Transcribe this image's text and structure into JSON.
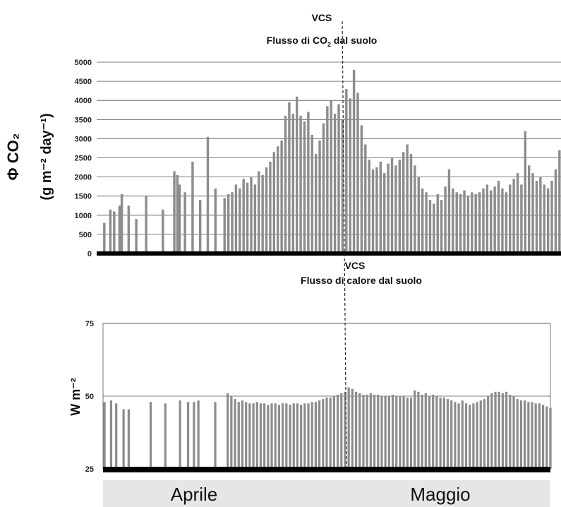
{
  "vcs_line": {
    "x_day": 32.2
  },
  "chart_data": [
    {
      "type": "bar",
      "id": "co2",
      "title_line1": "VCS",
      "title_line2_pre": "Flusso di CO",
      "title_line2_sub": "2",
      "title_line2_post": " dal suolo",
      "ylabel_line1": "Φ CO₂",
      "ylabel_line2": "(g m⁻² day⁻¹)",
      "ylim": [
        0,
        5000
      ],
      "yticks": [
        "0",
        "500",
        "1000",
        "1500",
        "2000",
        "2500",
        "3000",
        "3500",
        "4000",
        "4500",
        "5000"
      ],
      "grid": true,
      "color": "#8c8c8c",
      "x_unit": "days since 1 April",
      "x_range": [
        0,
        61
      ],
      "series": [
        {
          "x": [
            1.0,
            1.8,
            2.3,
            3.0,
            3.3,
            4.2,
            5.2,
            6.5,
            8.7,
            10.2,
            10.6,
            10.9,
            11.6,
            12.6,
            13.6,
            14.6,
            15.6,
            16.8,
            17.3,
            17.8,
            18.3,
            18.8,
            19.3,
            19.8,
            20.3,
            20.8,
            21.3,
            21.8,
            22.3,
            22.8,
            23.3,
            23.8,
            24.3,
            24.8,
            25.3,
            25.8,
            26.3,
            26.8,
            27.3,
            27.8,
            28.3,
            28.8,
            29.3,
            29.8,
            30.3,
            30.8,
            31.3,
            31.8,
            32.3,
            32.8,
            33.3,
            33.8,
            34.3,
            34.8,
            35.3,
            35.8,
            36.3,
            36.8,
            37.3,
            37.8,
            38.3,
            38.8,
            39.3,
            39.8,
            40.3,
            40.8,
            41.3,
            41.8,
            42.3,
            42.8,
            43.3,
            43.8,
            44.3,
            44.8,
            45.3,
            45.8,
            46.3,
            46.8,
            47.3,
            47.8,
            48.3,
            48.8,
            49.3,
            49.8,
            50.3,
            50.8,
            51.3,
            51.8,
            52.3,
            52.8,
            53.3,
            53.8,
            54.3,
            54.8,
            55.3,
            55.8,
            56.3,
            56.8,
            57.3,
            57.8,
            58.3,
            58.8,
            59.3,
            59.8,
            60.3,
            60.8
          ],
          "values": [
            800,
            1150,
            1100,
            1250,
            1550,
            1250,
            900,
            1500,
            1150,
            2150,
            2050,
            1800,
            1600,
            2400,
            1400,
            3050,
            1700,
            1450,
            1550,
            1600,
            1800,
            1700,
            1950,
            1850,
            2000,
            1800,
            2150,
            2050,
            2250,
            2400,
            2650,
            2800,
            2950,
            3600,
            3950,
            3650,
            4100,
            3600,
            3450,
            3700,
            3100,
            2600,
            2950,
            3400,
            3850,
            4000,
            3650,
            3900,
            3500,
            4300,
            4050,
            4800,
            4200,
            3350,
            2850,
            2450,
            2200,
            2250,
            2400,
            2100,
            2350,
            2500,
            2300,
            2450,
            2650,
            2850,
            2600,
            2300,
            2000,
            1700,
            1600,
            1400,
            1300,
            1550,
            1400,
            1750,
            2200,
            1700,
            1600,
            1550,
            1650,
            1500,
            1600,
            1550,
            1600,
            1700,
            1800,
            1650,
            1750,
            1900,
            1700,
            1600,
            1800,
            1950,
            2100,
            1800,
            3200,
            2300,
            2100,
            1900,
            2000,
            1800,
            1700,
            1900,
            2200,
            2700
          ]
        }
      ]
    },
    {
      "type": "bar",
      "id": "heat",
      "title_line1": "VCS",
      "title_line2": "Flusso di calore dal suolo",
      "ylabel": "W m⁻²",
      "ylim": [
        25,
        75
      ],
      "yticks": [
        "25",
        "50",
        "75"
      ],
      "grid": true,
      "color": "#8c8c8c",
      "x_unit": "days since 1 April",
      "x_range": [
        0,
        61
      ],
      "series": [
        {
          "x": [
            0.2,
            1.1,
            1.8,
            2.8,
            3.5,
            6.5,
            8.5,
            10.5,
            11.6,
            12.4,
            13.0,
            15.3,
            17.0,
            17.5,
            18.0,
            18.5,
            19.0,
            19.5,
            20.0,
            20.5,
            21.0,
            21.5,
            22.0,
            22.5,
            23.0,
            23.5,
            24.0,
            24.5,
            25.0,
            25.5,
            26.0,
            26.5,
            27.0,
            27.5,
            28.0,
            28.5,
            29.0,
            29.5,
            30.0,
            30.5,
            31.0,
            31.5,
            32.0,
            32.5,
            33.0,
            33.5,
            34.0,
            34.5,
            35.0,
            35.5,
            36.0,
            36.5,
            37.0,
            37.5,
            38.0,
            38.5,
            39.0,
            39.5,
            40.0,
            40.5,
            41.0,
            41.5,
            42.0,
            42.5,
            43.0,
            43.5,
            44.0,
            44.5,
            45.0,
            45.5,
            46.0,
            46.5,
            47.0,
            47.5,
            48.0,
            48.5,
            49.0,
            49.5,
            50.0,
            50.5,
            51.0,
            51.5,
            52.0,
            52.5,
            53.0,
            53.5,
            54.0,
            54.5,
            55.0,
            55.5,
            56.0,
            56.5,
            57.0,
            57.5,
            58.0,
            58.5,
            59.0,
            59.5,
            60.0,
            60.5,
            61.0
          ],
          "values": [
            48,
            48.5,
            47.5,
            45.5,
            45.5,
            48,
            47.5,
            48.5,
            48,
            48,
            48.5,
            48,
            51,
            50,
            49,
            48,
            48.5,
            48,
            47.5,
            47.5,
            48,
            47.5,
            47.5,
            47,
            47.5,
            47.5,
            47,
            47.5,
            47.5,
            47,
            47.5,
            47.5,
            47,
            47.5,
            47.5,
            48,
            48,
            48.5,
            49,
            49.5,
            49.5,
            50,
            50.5,
            51,
            51.5,
            53,
            52.5,
            51.5,
            51,
            50.5,
            50.5,
            51,
            50.5,
            50.5,
            50,
            50,
            50,
            50.5,
            50,
            50,
            50,
            49.5,
            49.5,
            52,
            51.5,
            50.5,
            51,
            50,
            50.5,
            50,
            49.5,
            49.5,
            49,
            48.5,
            48,
            47.5,
            48.5,
            47.5,
            47,
            47.5,
            48,
            48.5,
            49,
            50,
            51,
            51.5,
            51.5,
            51,
            51.5,
            50.5,
            50,
            49,
            48.5,
            48.5,
            48,
            48,
            47.5,
            47.5,
            47,
            46.5,
            46
          ]
        }
      ]
    }
  ],
  "months": [
    "Aprile",
    "Maggio"
  ]
}
